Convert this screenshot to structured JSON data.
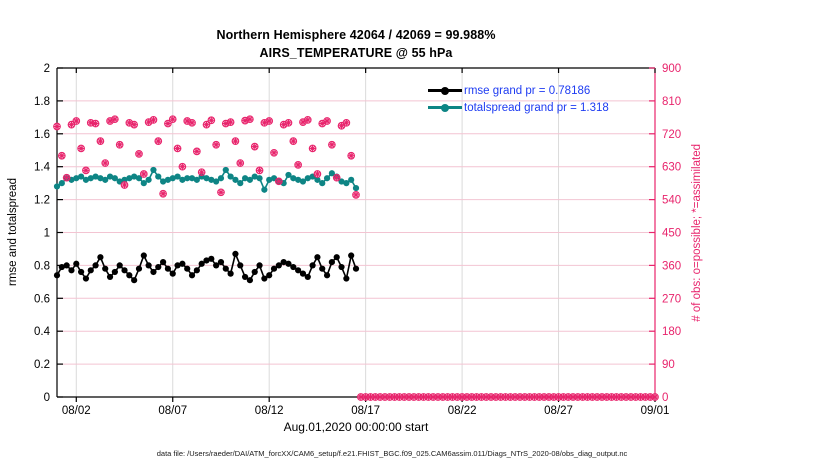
{
  "figure": {
    "title_line1": "Northern Hemisphere 42064 / 42069 = 99.988%",
    "title_line2": "AIRS_TEMPERATURE @ 55 hPa",
    "xlabel": "Aug.01,2020 00:00:00 start",
    "ylabel_left": "rmse and totalspread",
    "ylabel_right": "# of obs: o=possible; *=assimilated",
    "caption": "data file: /Users/raeder/DAI/ATM_forcXX/CAM6_setup/f.e21.FHIST_BGC.f09_025.CAM6assim.011/Diags_NTrS_2020-08/obs_diag_output.nc"
  },
  "legend": [
    {
      "label": "rmse grand pr = 0.78186",
      "color": "#000000"
    },
    {
      "label": "totalspread grand pr = 1.318",
      "color": "#0e8585"
    }
  ],
  "colors": {
    "axis": "#000000",
    "right_axis": "#e8246c",
    "obs": "#e8246c",
    "grid_h": "#f3c4d2",
    "grid_v": "#dadada",
    "legend_text": "#1e3cf2"
  },
  "chart_data": {
    "type": "line",
    "title": "Northern Hemisphere 42064 / 42069 = 99.988% | AIRS_TEMPERATURE @ 55 hPa",
    "x_axis": {
      "start": "Aug.01,2020 00:00:00",
      "unit": "days",
      "min_day": 0,
      "max_day": 31
    },
    "x_ticks": [
      {
        "day": 1,
        "label": "08/02"
      },
      {
        "day": 6,
        "label": "08/07"
      },
      {
        "day": 11,
        "label": "08/12"
      },
      {
        "day": 16,
        "label": "08/17"
      },
      {
        "day": 21,
        "label": "08/22"
      },
      {
        "day": 26,
        "label": "08/27"
      },
      {
        "day": 31,
        "label": "09/01"
      }
    ],
    "yleft": {
      "min": 0,
      "max": 2,
      "tick_values": [
        0,
        0.2,
        0.4,
        0.6,
        0.8,
        1,
        1.2,
        1.4,
        1.6,
        1.8,
        2
      ],
      "tick_labels": [
        "0",
        "0.2",
        "0.4",
        "0.6",
        "0.8",
        "1",
        "1.2",
        "1.4",
        "1.6",
        "1.8",
        "2"
      ],
      "label": "rmse and totalspread"
    },
    "yright": {
      "min": 0,
      "max": 900,
      "tick_values": [
        0,
        90,
        180,
        270,
        360,
        450,
        540,
        630,
        720,
        810,
        900
      ],
      "tick_labels": [
        "0",
        "90",
        "180",
        "270",
        "360",
        "450",
        "540",
        "630",
        "720",
        "810",
        "900"
      ],
      "label": "# of obs: o=possible; *=assimilated"
    },
    "series": [
      {
        "name": "rmse",
        "axis": "left",
        "line": true,
        "marker": "filled-circle",
        "color": "#000000",
        "grand_pr": 0.78186,
        "x_start_day": 0,
        "x_step_days": 0.25,
        "values": [
          0.74,
          0.79,
          0.8,
          0.77,
          0.81,
          0.76,
          0.72,
          0.77,
          0.8,
          0.85,
          0.78,
          0.73,
          0.76,
          0.8,
          0.77,
          0.74,
          0.71,
          0.78,
          0.86,
          0.8,
          0.76,
          0.79,
          0.82,
          0.78,
          0.75,
          0.8,
          0.81,
          0.78,
          0.74,
          0.77,
          0.81,
          0.83,
          0.84,
          0.8,
          0.82,
          0.78,
          0.75,
          0.87,
          0.8,
          0.73,
          0.71,
          0.76,
          0.8,
          0.72,
          0.74,
          0.78,
          0.8,
          0.82,
          0.81,
          0.79,
          0.77,
          0.75,
          0.73,
          0.8,
          0.85,
          0.78,
          0.74,
          0.82,
          0.85,
          0.79,
          0.72,
          0.86,
          0.78
        ]
      },
      {
        "name": "totalspread",
        "axis": "left",
        "line": true,
        "marker": "filled-circle",
        "color": "#0e8585",
        "grand_pr": 1.318,
        "x_start_day": 0,
        "x_step_days": 0.25,
        "values": [
          1.28,
          1.3,
          1.33,
          1.32,
          1.33,
          1.34,
          1.32,
          1.33,
          1.34,
          1.33,
          1.32,
          1.34,
          1.33,
          1.31,
          1.32,
          1.33,
          1.34,
          1.33,
          1.3,
          1.32,
          1.38,
          1.34,
          1.31,
          1.32,
          1.33,
          1.34,
          1.32,
          1.33,
          1.33,
          1.32,
          1.34,
          1.33,
          1.32,
          1.31,
          1.33,
          1.38,
          1.34,
          1.32,
          1.3,
          1.33,
          1.32,
          1.34,
          1.33,
          1.26,
          1.32,
          1.33,
          1.31,
          1.3,
          1.35,
          1.33,
          1.32,
          1.31,
          1.33,
          1.34,
          1.32,
          1.3,
          1.33,
          1.36,
          1.34,
          1.31,
          1.3,
          1.32,
          1.27
        ]
      },
      {
        "name": "obs_possible_assimilated",
        "axis": "right",
        "line": false,
        "marker": "circle-asterisk",
        "color": "#e8246c",
        "x_start_day": 0,
        "x_step_days": 0.25,
        "values": [
          740,
          660,
          600,
          745,
          755,
          680,
          620,
          750,
          748,
          700,
          640,
          755,
          760,
          690,
          580,
          750,
          745,
          665,
          610,
          752,
          758,
          700,
          556,
          748,
          760,
          680,
          630,
          755,
          750,
          672,
          615,
          745,
          757,
          690,
          560,
          748,
          752,
          700,
          640,
          756,
          760,
          685,
          620,
          750,
          755,
          668,
          590,
          745,
          750,
          700,
          635,
          752,
          758,
          680,
          610,
          748,
          755,
          690,
          600,
          742,
          750,
          660,
          553
        ]
      },
      {
        "name": "obs_zero_tail",
        "axis": "right",
        "line": false,
        "marker": "circle-asterisk",
        "color": "#e8246c",
        "x_start_day": 15.75,
        "x_end_day": 31,
        "x_step_days": 0.25,
        "constant_value": 0
      }
    ]
  }
}
